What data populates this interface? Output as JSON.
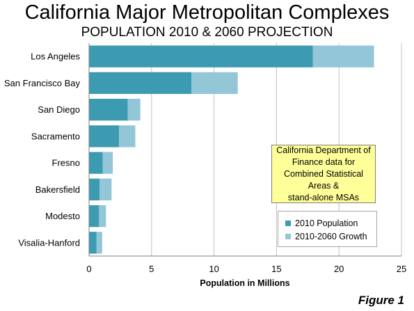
{
  "header": {
    "title": "California Major Metropolitan Complexes",
    "subtitle": "POPULATION 2010 & 2060 PROJECTION"
  },
  "note": {
    "lines": [
      "California Department of",
      "Finance data for",
      "Combined Statistical Areas &",
      "stand-alone MSAs"
    ]
  },
  "figure_label": "Figure 1",
  "colors": {
    "base": "#3c9bb0",
    "growth": "#93c6d6",
    "grid": "#bfbfbf",
    "note_bg": "#ffff99"
  },
  "chart_data": {
    "type": "bar",
    "orientation": "horizontal",
    "stacked": true,
    "categories": [
      "Los Angeles",
      "San Francisco Bay",
      "San Diego",
      "Sacramento",
      "Fresno",
      "Bakersfield",
      "Modesto",
      "Visalia-Hanford"
    ],
    "series": [
      {
        "name": "2010 Population",
        "values": [
          17.9,
          8.2,
          3.1,
          2.4,
          1.1,
          0.85,
          0.8,
          0.6
        ]
      },
      {
        "name": "2010-2060 Growth",
        "values": [
          4.9,
          3.7,
          1.0,
          1.3,
          0.8,
          0.95,
          0.55,
          0.45
        ]
      }
    ],
    "xlabel": "Population in Millions",
    "xlim": [
      0,
      25
    ],
    "xticks": [
      0,
      5,
      10,
      15,
      20,
      25
    ],
    "grid": true,
    "legend_position": "bottom-right"
  }
}
